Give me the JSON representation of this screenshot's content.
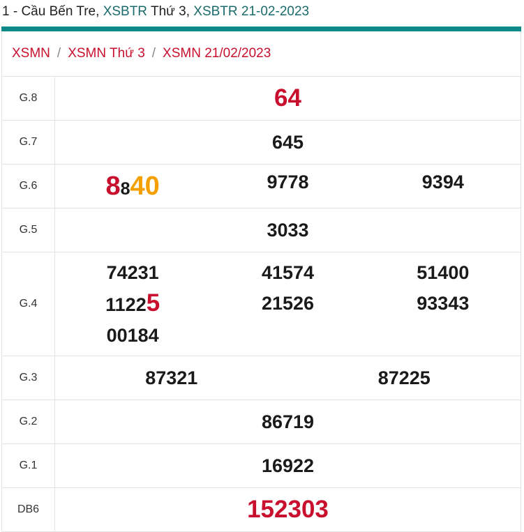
{
  "header": {
    "prefix": "1 - Cầu Bến Tre, ",
    "link1": "XSBTR",
    "mid": " Thứ 3, ",
    "link2": "XSBTR 21-02-2023"
  },
  "breadcrumb": {
    "item1": "XSMN",
    "sep": "/",
    "item2": "XSMN Thứ 3",
    "item3": "XSMN 21/02/2023"
  },
  "prizes": {
    "g8": {
      "label": "G.8",
      "value": "64"
    },
    "g7": {
      "label": "G.7",
      "value": "645"
    },
    "g6": {
      "label": "G.6",
      "v1_a": "8",
      "v1_b": "8",
      "v1_c": "40",
      "v2": "9778",
      "v3": "9394"
    },
    "g5": {
      "label": "G.5",
      "value": "3033"
    },
    "g4": {
      "label": "G.4",
      "v1": "74231",
      "v2": "41574",
      "v3": "51400",
      "v4_a": "1122",
      "v4_b": "5",
      "v5": "21526",
      "v6": "93343",
      "v7": "00184"
    },
    "g3": {
      "label": "G.3",
      "v1": "87321",
      "v2": "87225"
    },
    "g2": {
      "label": "G.2",
      "value": "86719"
    },
    "g1": {
      "label": "G.1",
      "value": "16922"
    },
    "db": {
      "label": "DB6",
      "value": "152303"
    }
  },
  "colors": {
    "accent": "#0c8a8a",
    "red": "#c8102e",
    "orange": "#f5a000",
    "link": "#1a6b6b"
  }
}
